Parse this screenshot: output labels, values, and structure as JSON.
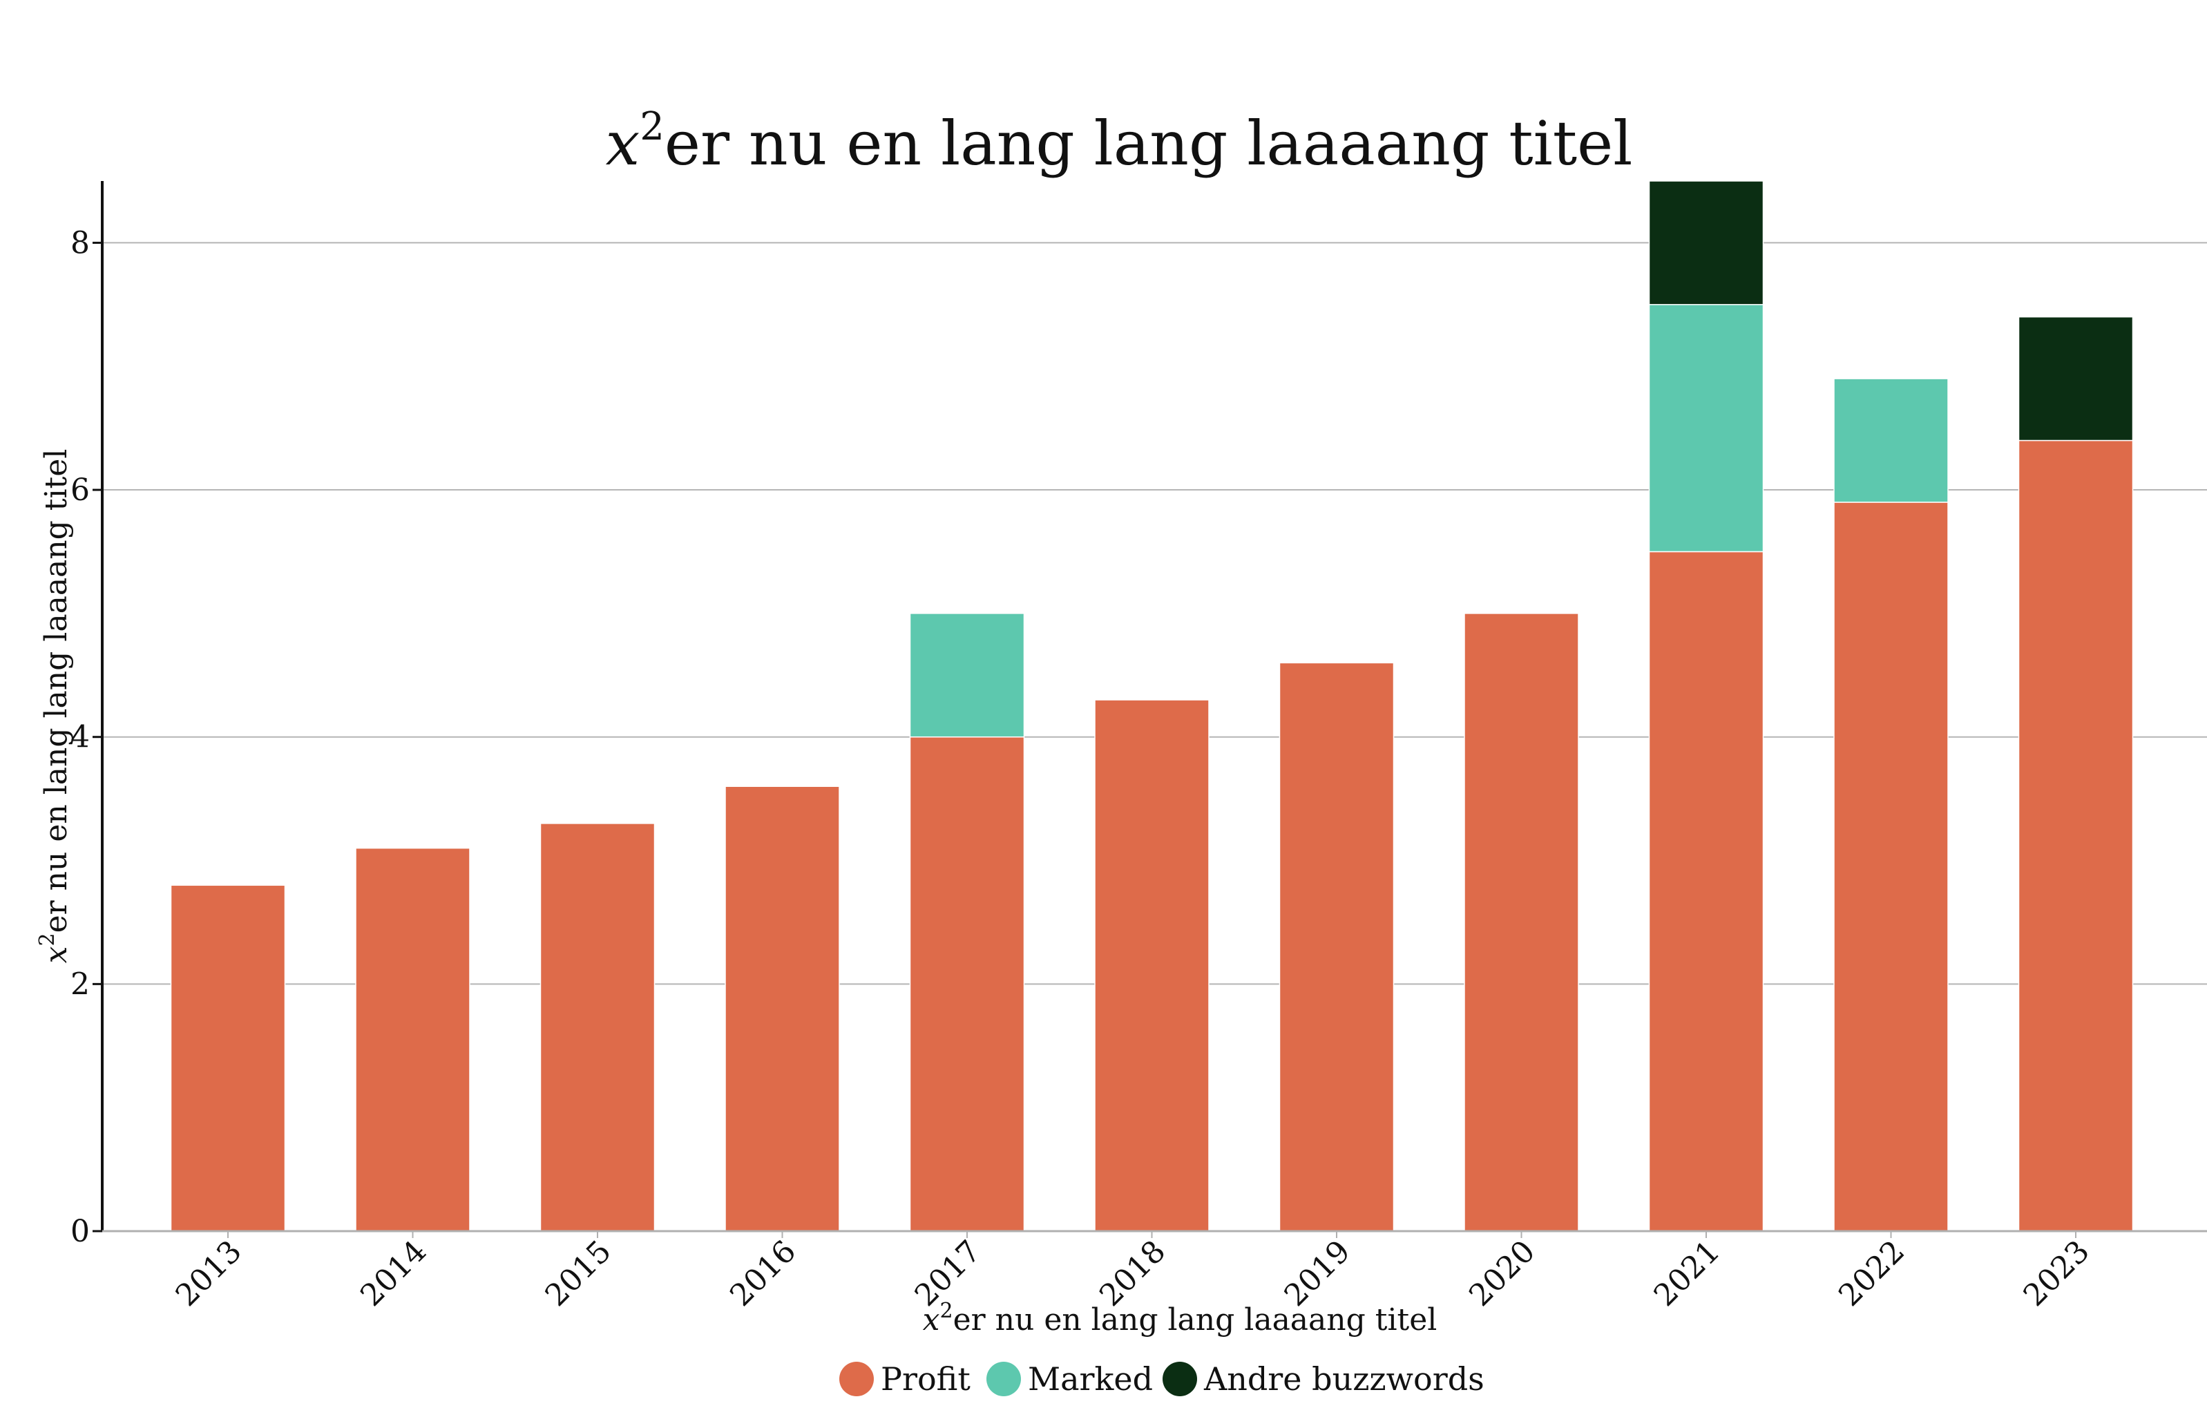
{
  "chart_data": {
    "type": "bar",
    "stacked": true,
    "title": {
      "var": "x",
      "sup": "2",
      "text": "er nu en lang lang laaaang titel"
    },
    "xlabel": {
      "var": "x",
      "sup": "2",
      "text": "er nu en lang lang laaaang titel"
    },
    "ylabel": {
      "var": "x",
      "sup": "2",
      "text": "er nu en lang lang laaaang titel"
    },
    "categories": [
      "2013",
      "2014",
      "2015",
      "2016",
      "2017",
      "2018",
      "2019",
      "2020",
      "2021",
      "2022",
      "2023"
    ],
    "series": [
      {
        "name": "Profit",
        "color": "#de6b4a",
        "values": [
          2.8,
          3.1,
          3.3,
          3.6,
          4.0,
          4.3,
          4.6,
          5.0,
          5.5,
          5.9,
          6.4
        ]
      },
      {
        "name": "Marked",
        "color": "#5dc8ae",
        "values": [
          0,
          0,
          0,
          0,
          1.0,
          0,
          0,
          0,
          2.0,
          1.0,
          0
        ]
      },
      {
        "name": "Andre buzzwords",
        "color": "#0b2e13",
        "values": [
          0,
          0,
          0,
          0,
          0,
          0,
          0,
          0,
          1.0,
          0,
          1.0
        ]
      }
    ],
    "ylim": [
      0,
      8.5
    ],
    "yticks": [
      "0",
      "2",
      "4",
      "6",
      "8"
    ],
    "grid": "horizontal",
    "legend_position": "bottom-center"
  }
}
